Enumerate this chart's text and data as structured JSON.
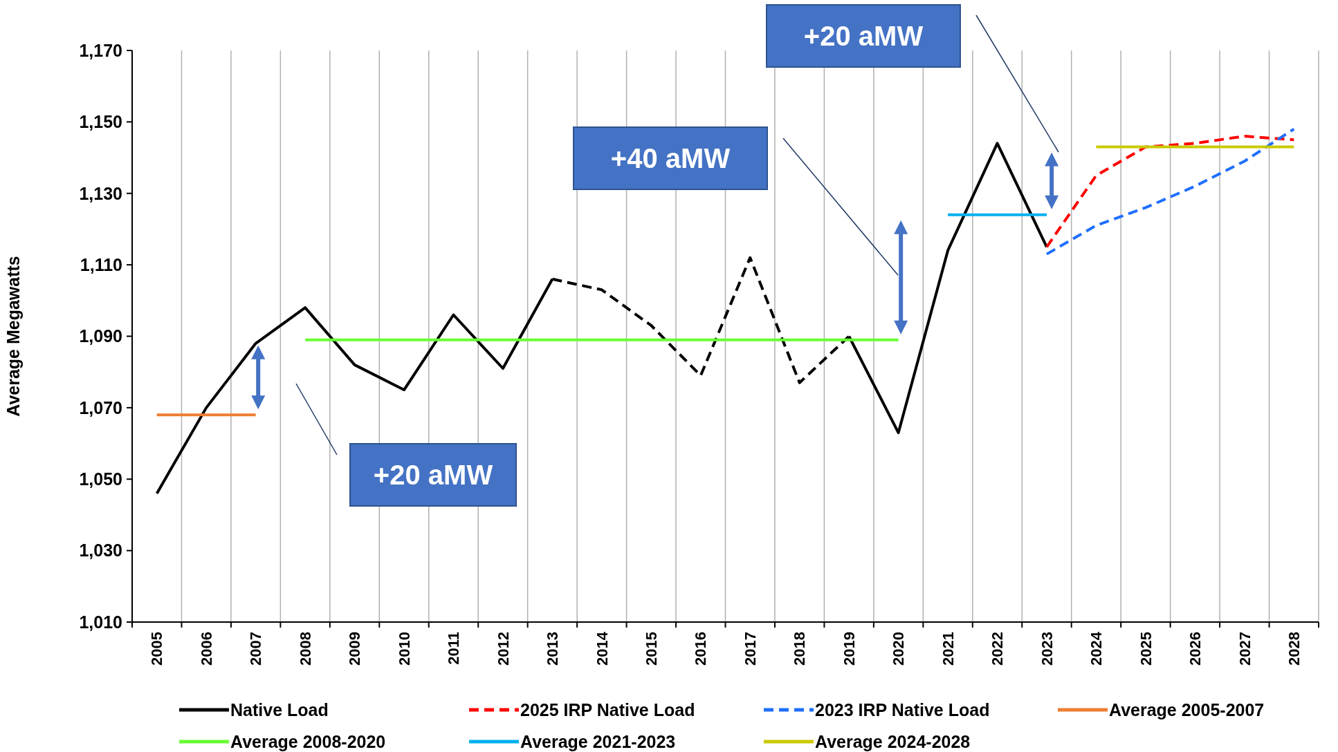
{
  "chart_data": {
    "type": "line",
    "ylabel": "Average Megawatts",
    "categories": [
      "2005",
      "2006",
      "2007",
      "2008",
      "2009",
      "2010",
      "2011",
      "2012",
      "2013",
      "2014",
      "2015",
      "2016",
      "2017",
      "2018",
      "2019",
      "2020",
      "2021",
      "2022",
      "2023",
      "2024",
      "2025",
      "2026",
      "2027",
      "2028"
    ],
    "series": [
      {
        "name": "Native Load",
        "color": "#000000",
        "line_style": "solid",
        "values": [
          1046,
          1070,
          1088,
          1098,
          1082,
          1075,
          1096,
          1081,
          1106,
          null,
          null,
          null,
          null,
          null,
          1090,
          1063,
          1114,
          1144,
          1115,
          null,
          null,
          null,
          null,
          null
        ]
      },
      {
        "color": "#000000",
        "line_style": "dashed",
        "values": [
          null,
          null,
          null,
          null,
          null,
          null,
          null,
          null,
          1106,
          1103,
          1093,
          1079,
          1112,
          1077,
          1090,
          null,
          null,
          null,
          null,
          null,
          null,
          null,
          null,
          null
        ]
      },
      {
        "name": "2025 IRP Native Load",
        "color": "#ff0000",
        "line_style": "dashed",
        "values": [
          null,
          null,
          null,
          null,
          null,
          null,
          null,
          null,
          null,
          null,
          null,
          null,
          null,
          null,
          null,
          null,
          null,
          null,
          1115,
          1135,
          1143,
          1144,
          1146,
          1145
        ]
      },
      {
        "name": "2023 IRP Native Load",
        "color": "#1f6fff",
        "line_style": "dashed",
        "values": [
          null,
          null,
          null,
          null,
          null,
          null,
          null,
          null,
          null,
          null,
          null,
          null,
          null,
          null,
          null,
          null,
          null,
          null,
          1113,
          1121,
          1126,
          1132,
          1139,
          1148
        ]
      },
      {
        "name": "Average 2005-2007",
        "color": "#ed7d31",
        "line_style": "solid",
        "values": [
          1068,
          1068,
          1068,
          null,
          null,
          null,
          null,
          null,
          null,
          null,
          null,
          null,
          null,
          null,
          null,
          null,
          null,
          null,
          null,
          null,
          null,
          null,
          null,
          null
        ]
      },
      {
        "name": "Average 2008-2020",
        "color": "#66ff33",
        "line_style": "solid",
        "values": [
          null,
          null,
          null,
          1089,
          1089,
          1089,
          1089,
          1089,
          1089,
          1089,
          1089,
          1089,
          1089,
          1089,
          1089,
          1089,
          null,
          null,
          null,
          null,
          null,
          null,
          null,
          null
        ]
      },
      {
        "name": "Average 2021-2023",
        "color": "#00b0f0",
        "line_style": "solid",
        "values": [
          null,
          null,
          null,
          null,
          null,
          null,
          null,
          null,
          null,
          null,
          null,
          null,
          null,
          null,
          null,
          null,
          1124,
          1124,
          1124,
          null,
          null,
          null,
          null,
          null
        ]
      },
      {
        "name": "Average 2024-2028",
        "color": "#c9c900",
        "line_style": "solid",
        "values": [
          null,
          null,
          null,
          null,
          null,
          null,
          null,
          null,
          null,
          null,
          null,
          null,
          null,
          null,
          null,
          null,
          null,
          null,
          null,
          1143,
          1143,
          1143,
          1143,
          1143
        ]
      }
    ],
    "ylim": [
      1010,
      1170
    ],
    "yticks": [
      {
        "value": 1010,
        "label": "1,010"
      },
      {
        "value": 1030,
        "label": "1,030"
      },
      {
        "value": 1050,
        "label": "1,050"
      },
      {
        "value": 1070,
        "label": "1,070"
      },
      {
        "value": 1090,
        "label": "1,090"
      },
      {
        "value": 1110,
        "label": "1,110"
      },
      {
        "value": 1130,
        "label": "1,130"
      },
      {
        "value": 1150,
        "label": "1,150"
      },
      {
        "value": 1170,
        "label": "1,170"
      }
    ],
    "grid": "x",
    "legend": "bottom",
    "marker": "none",
    "annotations": [
      "+20 aMW",
      "+40 aMW",
      "+20 aMW"
    ]
  }
}
